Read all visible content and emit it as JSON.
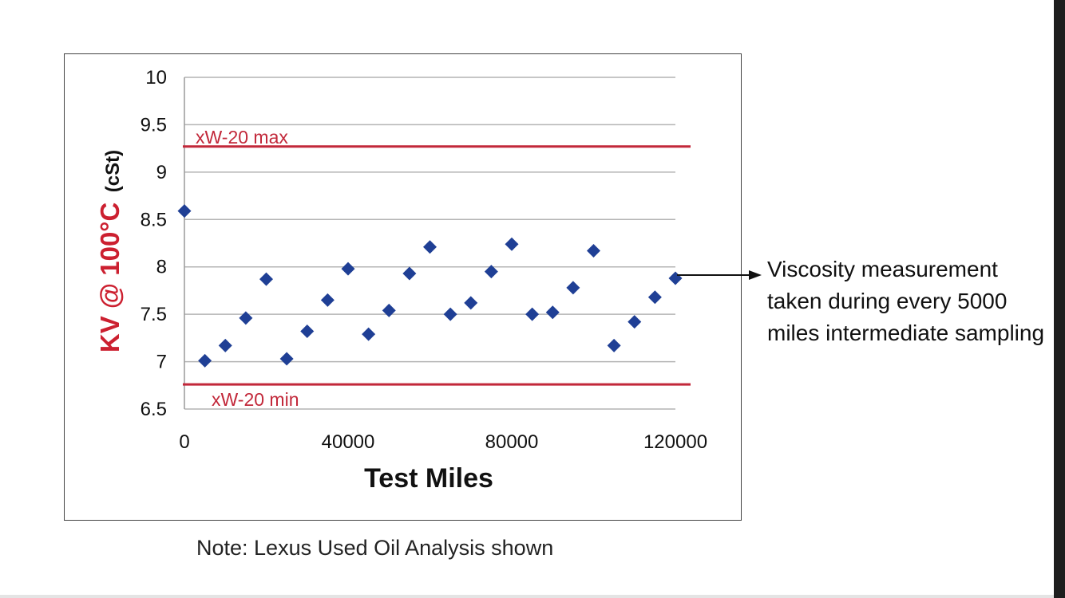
{
  "note": "Note:  Lexus Used Oil Analysis shown",
  "annotation": {
    "text": "Viscosity measurement taken during every 5000 miles intermediate sampling"
  },
  "colors": {
    "marker": "#1f3f95",
    "reference_line": "#c2283a",
    "ylabel_main": "#cc2030",
    "grid": "#b4b4b4"
  },
  "chart_data": {
    "type": "scatter",
    "title": "",
    "xlabel": "Test Miles",
    "ylabel": "KV @ 100°C",
    "ylabel_unit": "(cSt)",
    "xlim": [
      0,
      120000
    ],
    "ylim": [
      6.5,
      10
    ],
    "xticks": [
      0,
      40000,
      80000,
      120000
    ],
    "yticks": [
      6.5,
      7,
      7.5,
      8,
      8.5,
      9,
      9.5,
      10
    ],
    "grid": "horizontal",
    "marker": "diamond",
    "reference_lines": [
      {
        "label": "xW-20 max",
        "y": 9.27
      },
      {
        "label": "xW-20 min",
        "y": 6.76
      }
    ],
    "x": [
      0,
      5000,
      10000,
      15000,
      20000,
      25000,
      30000,
      35000,
      40000,
      45000,
      50000,
      55000,
      60000,
      65000,
      70000,
      75000,
      80000,
      85000,
      90000,
      95000,
      100000,
      105000,
      110000,
      115000,
      120000
    ],
    "y": [
      8.59,
      7.01,
      7.17,
      7.46,
      7.87,
      7.03,
      7.32,
      7.65,
      7.98,
      7.29,
      7.54,
      7.93,
      8.21,
      7.5,
      7.62,
      7.95,
      8.24,
      7.5,
      7.52,
      7.78,
      8.17,
      7.17,
      7.42,
      7.68,
      7.88
    ]
  }
}
